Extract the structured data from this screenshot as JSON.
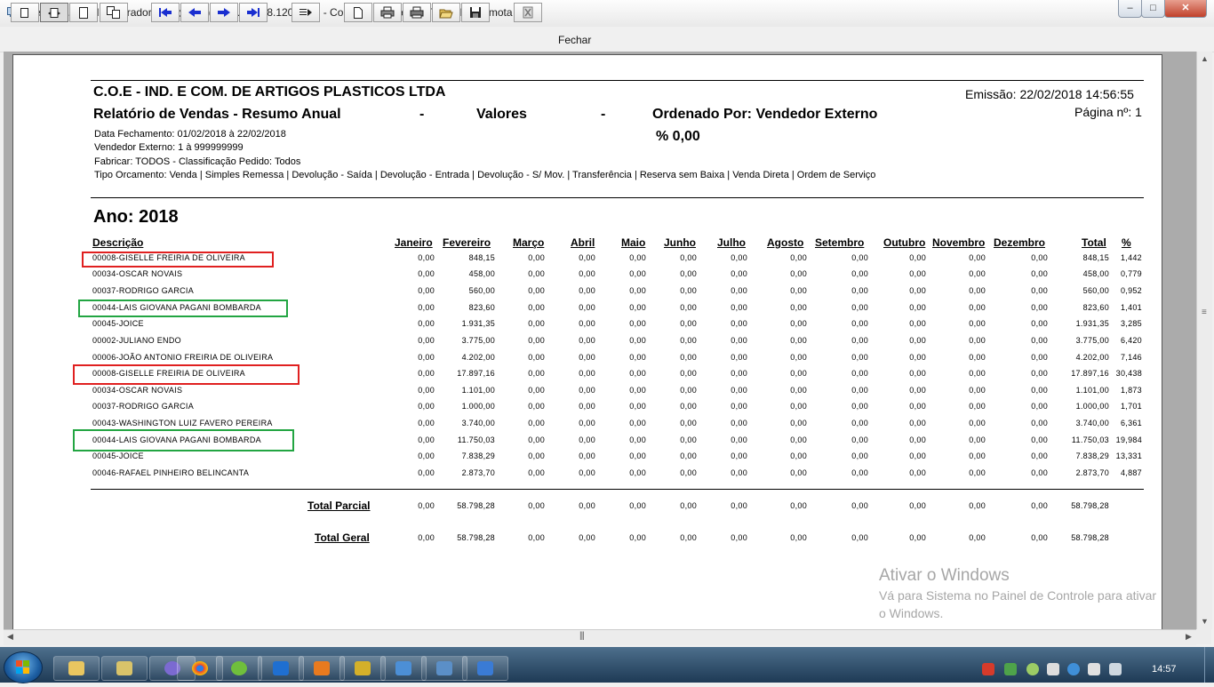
{
  "window": {
    "title": "Steel Glass (Administrador copo@123) - 177.19.238.120:6000 - Conexão de Área de Trabalho Remota"
  },
  "toolbar": {
    "close_label": "Fechar"
  },
  "report": {
    "company": "C.O.E - IND. E COM. DE ARTIGOS PLASTICOS LTDA",
    "emission": "Emissão: 22/02/2018 14:56:55",
    "page": "Página nº: 1",
    "subtitle_left": "Relatório de Vendas - Resumo Anual",
    "dash1": "-",
    "subtitle_mid": "Valores",
    "dash2": "-",
    "subtitle_right": "Ordenado Por: Vendedor Externo",
    "percent": "% 0,00",
    "filter_date": "Data Fechamento: 01/02/2018 à 22/02/2018",
    "filter_seller": "Vendedor Externo: 1 à 999999999",
    "filter_manufacture": "Fabricar: TODOS - Classificação Pedido: Todos",
    "filter_order_type": "Tipo Orcamento: Venda | Simples Remessa | Devolução - Saída | Devolução - Entrada | Devolução - S/ Mov. | Transferência | Reserva sem Baixa | Venda Direta | Ordem de Serviço",
    "year": "Ano: 2018"
  },
  "table": {
    "columns": [
      "Descrição",
      "Janeiro",
      "Fevereiro",
      "Março",
      "Abril",
      "Maio",
      "Junho",
      "Julho",
      "Agosto",
      "Setembro",
      "Outubro",
      "Novembro",
      "Dezembro",
      "Total",
      "%"
    ],
    "rows": [
      {
        "desc": "00008-GISELLE FREIRIA DE OLIVEIRA",
        "v": [
          "0,00",
          "848,15",
          "0,00",
          "0,00",
          "0,00",
          "0,00",
          "0,00",
          "0,00",
          "0,00",
          "0,00",
          "0,00",
          "0,00",
          "848,15",
          "1,442"
        ],
        "highlight": "red"
      },
      {
        "desc": "00034-OSCAR NOVAIS",
        "v": [
          "0,00",
          "458,00",
          "0,00",
          "0,00",
          "0,00",
          "0,00",
          "0,00",
          "0,00",
          "0,00",
          "0,00",
          "0,00",
          "0,00",
          "458,00",
          "0,779"
        ],
        "highlight": ""
      },
      {
        "desc": "00037-RODRIGO GARCIA",
        "v": [
          "0,00",
          "560,00",
          "0,00",
          "0,00",
          "0,00",
          "0,00",
          "0,00",
          "0,00",
          "0,00",
          "0,00",
          "0,00",
          "0,00",
          "560,00",
          "0,952"
        ],
        "highlight": ""
      },
      {
        "desc": "00044-LAIS GIOVANA PAGANI BOMBARDA",
        "v": [
          "0,00",
          "823,60",
          "0,00",
          "0,00",
          "0,00",
          "0,00",
          "0,00",
          "0,00",
          "0,00",
          "0,00",
          "0,00",
          "0,00",
          "823,60",
          "1,401"
        ],
        "highlight": "green"
      },
      {
        "desc": "00045-JOICE",
        "v": [
          "0,00",
          "1.931,35",
          "0,00",
          "0,00",
          "0,00",
          "0,00",
          "0,00",
          "0,00",
          "0,00",
          "0,00",
          "0,00",
          "0,00",
          "1.931,35",
          "3,285"
        ],
        "highlight": ""
      },
      {
        "desc": "00002-JULIANO ENDO",
        "v": [
          "0,00",
          "3.775,00",
          "0,00",
          "0,00",
          "0,00",
          "0,00",
          "0,00",
          "0,00",
          "0,00",
          "0,00",
          "0,00",
          "0,00",
          "3.775,00",
          "6,420"
        ],
        "highlight": ""
      },
      {
        "desc": "00006-JOÃO ANTONIO FREIRIA DE OLIVEIRA",
        "v": [
          "0,00",
          "4.202,00",
          "0,00",
          "0,00",
          "0,00",
          "0,00",
          "0,00",
          "0,00",
          "0,00",
          "0,00",
          "0,00",
          "0,00",
          "4.202,00",
          "7,146"
        ],
        "highlight": ""
      },
      {
        "desc": "00008-GISELLE FREIRIA DE OLIVEIRA",
        "v": [
          "0,00",
          "17.897,16",
          "0,00",
          "0,00",
          "0,00",
          "0,00",
          "0,00",
          "0,00",
          "0,00",
          "0,00",
          "0,00",
          "0,00",
          "17.897,16",
          "30,438"
        ],
        "highlight": "red"
      },
      {
        "desc": "00034-OSCAR NOVAIS",
        "v": [
          "0,00",
          "1.101,00",
          "0,00",
          "0,00",
          "0,00",
          "0,00",
          "0,00",
          "0,00",
          "0,00",
          "0,00",
          "0,00",
          "0,00",
          "1.101,00",
          "1,873"
        ],
        "highlight": ""
      },
      {
        "desc": "00037-RODRIGO GARCIA",
        "v": [
          "0,00",
          "1.000,00",
          "0,00",
          "0,00",
          "0,00",
          "0,00",
          "0,00",
          "0,00",
          "0,00",
          "0,00",
          "0,00",
          "0,00",
          "1.000,00",
          "1,701"
        ],
        "highlight": ""
      },
      {
        "desc": "00043-WASHINGTON LUIZ FAVERO PEREIRA",
        "v": [
          "0,00",
          "3.740,00",
          "0,00",
          "0,00",
          "0,00",
          "0,00",
          "0,00",
          "0,00",
          "0,00",
          "0,00",
          "0,00",
          "0,00",
          "3.740,00",
          "6,361"
        ],
        "highlight": ""
      },
      {
        "desc": "00044-LAIS GIOVANA PAGANI BOMBARDA",
        "v": [
          "0,00",
          "11.750,03",
          "0,00",
          "0,00",
          "0,00",
          "0,00",
          "0,00",
          "0,00",
          "0,00",
          "0,00",
          "0,00",
          "0,00",
          "11.750,03",
          "19,984"
        ],
        "highlight": "green"
      },
      {
        "desc": "00045-JOICE",
        "v": [
          "0,00",
          "7.838,29",
          "0,00",
          "0,00",
          "0,00",
          "0,00",
          "0,00",
          "0,00",
          "0,00",
          "0,00",
          "0,00",
          "0,00",
          "7.838,29",
          "13,331"
        ],
        "highlight": ""
      },
      {
        "desc": "00046-RAFAEL PINHEIRO BELINCANTA",
        "v": [
          "0,00",
          "2.873,70",
          "0,00",
          "0,00",
          "0,00",
          "0,00",
          "0,00",
          "0,00",
          "0,00",
          "0,00",
          "0,00",
          "0,00",
          "2.873,70",
          "4,887"
        ],
        "highlight": ""
      }
    ],
    "totals": [
      {
        "label": "Total Parcial",
        "v": [
          "0,00",
          "58.798,28",
          "0,00",
          "0,00",
          "0,00",
          "0,00",
          "0,00",
          "0,00",
          "0,00",
          "0,00",
          "0,00",
          "0,00",
          "58.798,28"
        ]
      },
      {
        "label": "Total Geral",
        "v": [
          "0,00",
          "58.798,28",
          "0,00",
          "0,00",
          "0,00",
          "0,00",
          "0,00",
          "0,00",
          "0,00",
          "0,00",
          "0,00",
          "0,00",
          "58.798,28"
        ]
      }
    ]
  },
  "watermark": {
    "line1": "Ativar o Windows",
    "line2": "Vá para Sistema no Painel de Controle para ativar",
    "line3": "o Windows."
  },
  "taskbar": {
    "clock": "14:57"
  },
  "colors": {
    "highlight_red": "#e02020",
    "highlight_green": "#22a542"
  }
}
